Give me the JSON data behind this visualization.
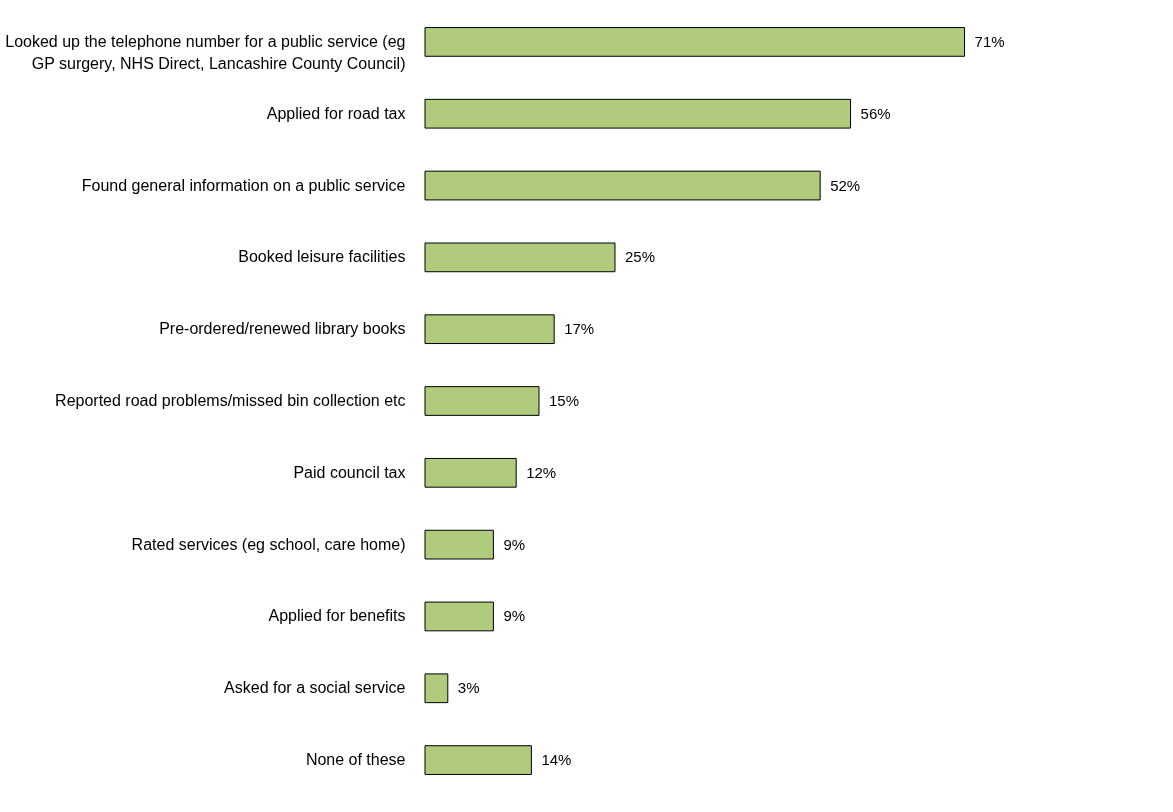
{
  "chart_data": {
    "type": "bar",
    "orientation": "horizontal",
    "categories": [
      "Looked up the telephone number for a public service (eg GP surgery, NHS Direct, Lancashire County Council)",
      "Applied for road tax",
      "Found general information on a public service",
      "Booked leisure facilities",
      "Pre-ordered/renewed library books",
      "Reported road problems/missed bin collection etc",
      "Paid council tax",
      "Rated services (eg school, care home)",
      "Applied for benefits",
      "Asked for a social service",
      "None of these"
    ],
    "values": [
      71,
      56,
      52,
      25,
      17,
      15,
      12,
      9,
      9,
      3,
      14
    ],
    "value_labels": [
      "71%",
      "56%",
      "52%",
      "25%",
      "17%",
      "15%",
      "12%",
      "9%",
      "9%",
      "3%",
      "14%"
    ],
    "color": "#b0cb7c"
  }
}
